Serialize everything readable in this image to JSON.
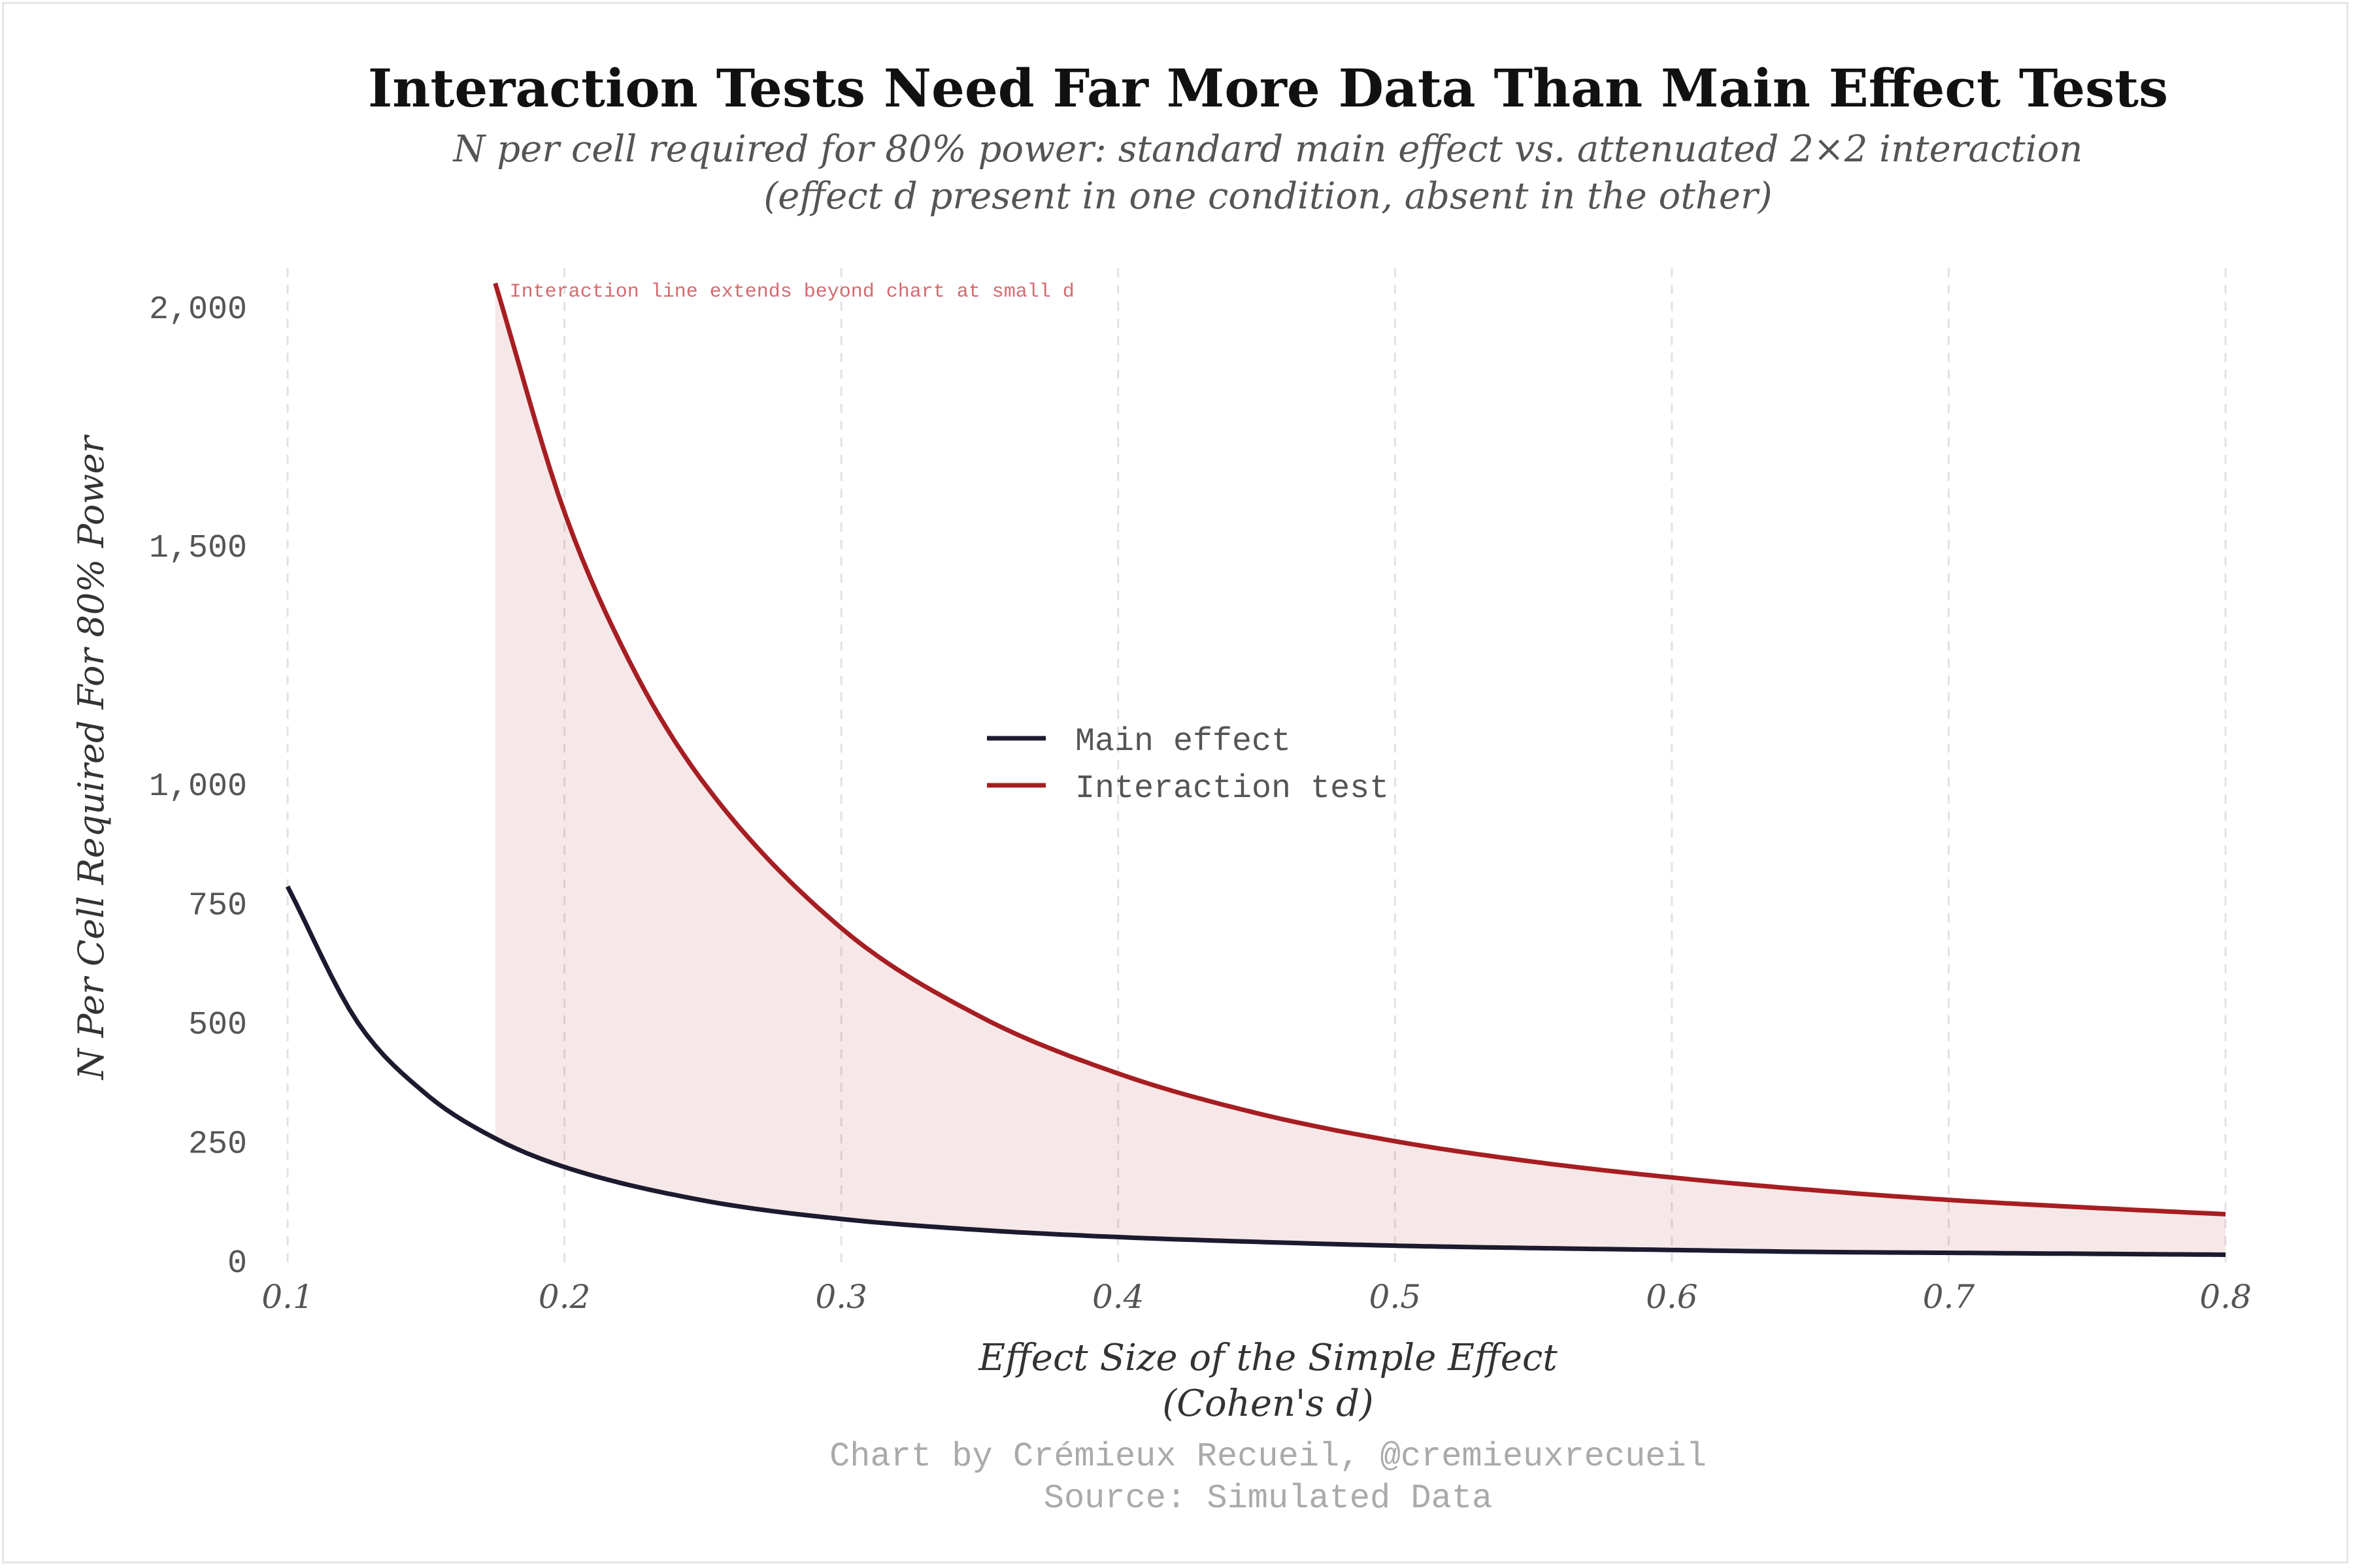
{
  "chart_data": {
    "type": "line",
    "title": "Interaction Tests Need Far More Data Than Main Effect Tests",
    "subtitle_lines": [
      "N per cell required for 80% power: standard main effect vs. attenuated 2×2 interaction",
      "(effect d present in one condition, absent in the other)"
    ],
    "xlabel_lines": [
      "Effect Size of the Simple Effect",
      "(Cohen's d)"
    ],
    "ylabel": "N Per Cell Required For 80% Power",
    "xlim": [
      0.1,
      0.8
    ],
    "ylim": [
      0,
      2000
    ],
    "x_ticks": [
      0.1,
      0.2,
      0.3,
      0.4,
      0.5,
      0.6,
      0.7,
      0.8
    ],
    "x_tick_labels": [
      "0.1",
      "0.2",
      "0.3",
      "0.4",
      "0.5",
      "0.6",
      "0.7",
      "0.8"
    ],
    "y_ticks": [
      0,
      250,
      500,
      750,
      1000,
      1500,
      2000
    ],
    "y_tick_labels": [
      "0",
      "250",
      "500",
      "750",
      "1,000",
      "1,500",
      "2,000"
    ],
    "grid": "x-dashed",
    "legend_position": "center",
    "series": [
      {
        "name": "Main effect",
        "color": "#1c1a2e",
        "x": [
          0.1,
          0.125,
          0.15,
          0.175,
          0.2,
          0.25,
          0.3,
          0.35,
          0.4,
          0.45,
          0.5,
          0.55,
          0.6,
          0.65,
          0.7,
          0.75,
          0.8
        ],
        "y": [
          785,
          503,
          350,
          257,
          197,
          127,
          88,
          65,
          50,
          40,
          32,
          27,
          23,
          19,
          17,
          15,
          13
        ]
      },
      {
        "name": "Interaction test",
        "color": "#a61e22",
        "x": [
          0.175,
          0.2,
          0.225,
          0.25,
          0.3,
          0.35,
          0.4,
          0.45,
          0.5,
          0.55,
          0.6,
          0.65,
          0.7,
          0.75,
          0.8
        ],
        "y": [
          2050,
          1570,
          1240,
          1005,
          698,
          513,
          393,
          310,
          251,
          208,
          175,
          149,
          128,
          112,
          98
        ]
      }
    ],
    "fill_between": {
      "color": "#a61e22",
      "opacity": 0.1,
      "x_range": [
        0.175,
        0.8
      ]
    },
    "annotation": "Interaction line extends beyond chart at small d",
    "caption_lines": [
      "Chart by Crémieux Recueil, @cremieuxrecueil",
      "Source: Simulated Data"
    ]
  }
}
